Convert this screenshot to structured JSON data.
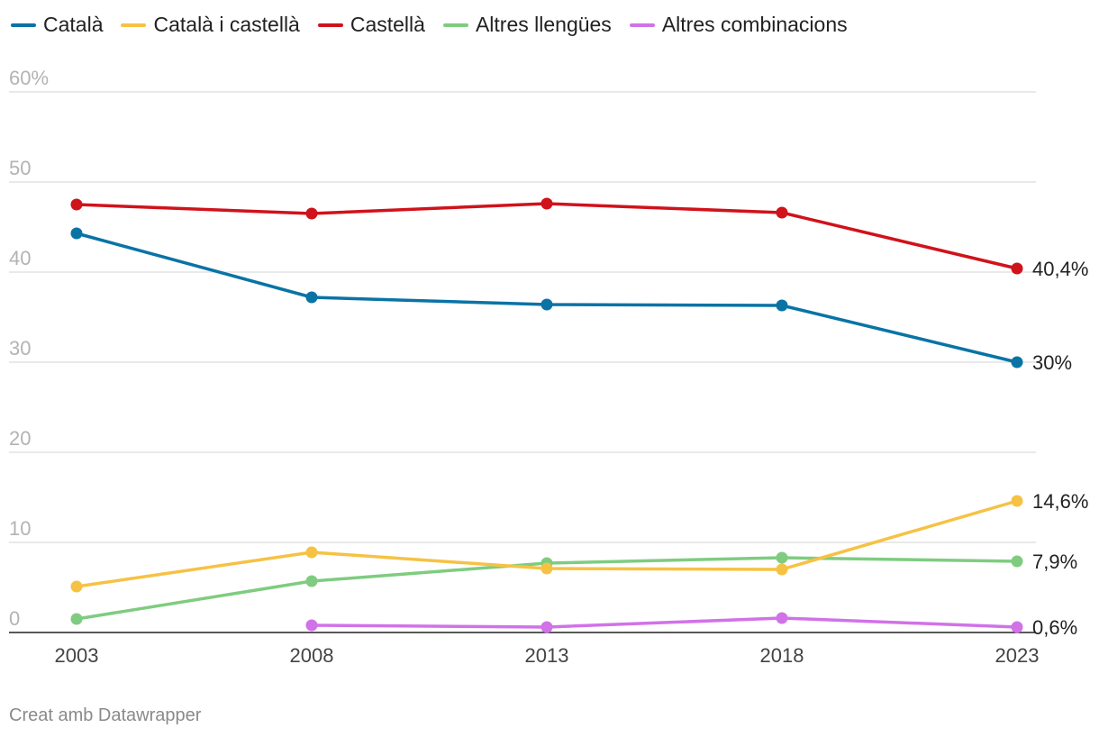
{
  "chart_data": {
    "type": "line",
    "x": [
      "2003",
      "2008",
      "2013",
      "2018",
      "2023"
    ],
    "ylim": [
      0,
      60
    ],
    "y_ticks": [
      "0",
      "10",
      "20",
      "30",
      "40",
      "50",
      "60%"
    ],
    "grid": true,
    "legend_position": "top-left",
    "series": [
      {
        "name": "Català",
        "color": "#0a73a6",
        "values": [
          44.3,
          37.2,
          36.4,
          36.3,
          30.0
        ],
        "end_label": "30%"
      },
      {
        "name": "Català i castellà",
        "color": "#f6c244",
        "values": [
          5.1,
          8.9,
          7.1,
          7.0,
          14.6
        ],
        "end_label": "14,6%"
      },
      {
        "name": "Castellà",
        "color": "#d0121b",
        "values": [
          47.5,
          46.5,
          47.6,
          46.6,
          40.4
        ],
        "end_label": "40,4%"
      },
      {
        "name": "Altres llengües",
        "color": "#7fcc80",
        "values": [
          1.5,
          5.7,
          7.7,
          8.3,
          7.9
        ],
        "end_label": "7,9%"
      },
      {
        "name": "Altres combinacions",
        "color": "#d172e8",
        "values": [
          null,
          0.8,
          0.6,
          1.6,
          0.6
        ],
        "end_label": "0,6%"
      }
    ]
  },
  "footer": {
    "credit": "Creat amb Datawrapper"
  }
}
